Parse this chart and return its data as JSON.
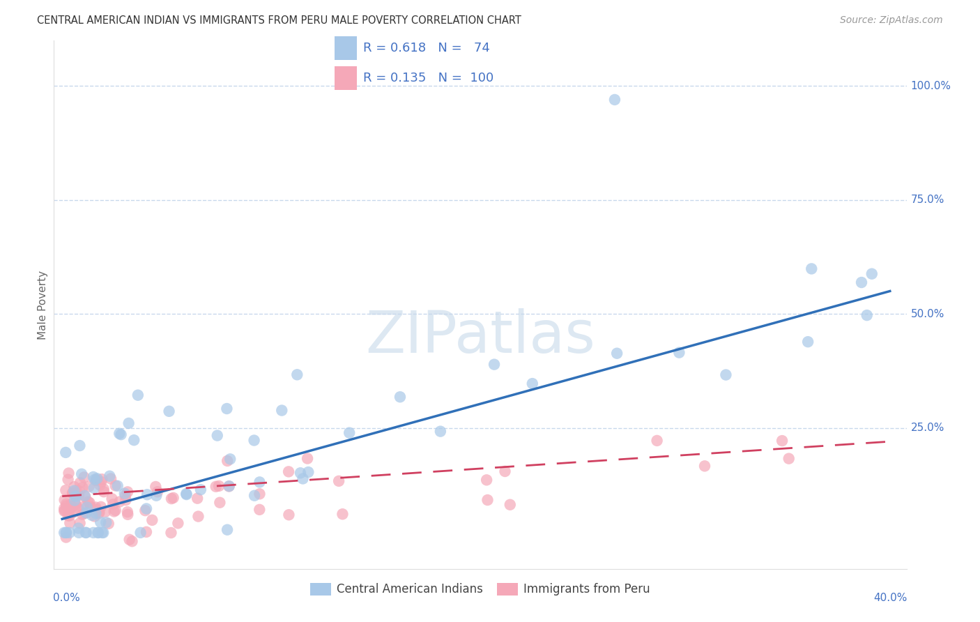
{
  "title": "CENTRAL AMERICAN INDIAN VS IMMIGRANTS FROM PERU MALE POVERTY CORRELATION CHART",
  "source": "Source: ZipAtlas.com",
  "ylabel": "Male Poverty",
  "xlim": [
    -0.004,
    0.408
  ],
  "ylim": [
    -0.06,
    1.1
  ],
  "blue_R": 0.618,
  "blue_N": 74,
  "pink_R": 0.135,
  "pink_N": 100,
  "blue_color": "#a8c8e8",
  "pink_color": "#f5a8b8",
  "blue_line_color": "#3070b8",
  "pink_line_color": "#d04060",
  "grid_color": "#c8d8ec",
  "watermark_text": "ZIPatlas",
  "watermark_color": "#dde8f2",
  "background_color": "#ffffff",
  "tick_label_color": "#4472c4",
  "title_color": "#333333",
  "source_color": "#999999",
  "ylabel_color": "#666666"
}
